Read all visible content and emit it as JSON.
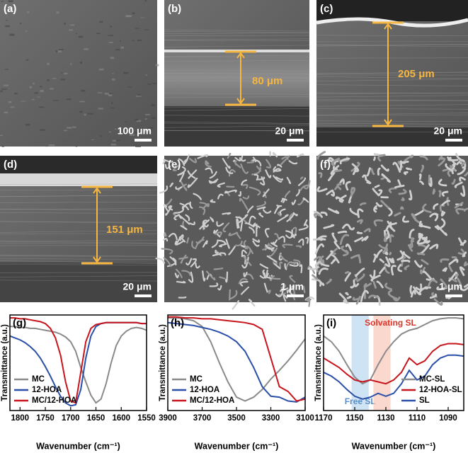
{
  "figure": {
    "images": [
      {
        "label": "(a)",
        "scale_bar": "100 μm"
      },
      {
        "label": "(b)",
        "scale_bar": "20 μm",
        "thickness": "80 μm"
      },
      {
        "label": "(c)",
        "scale_bar": "20 μm",
        "thickness": "205 μm"
      },
      {
        "label": "(d)",
        "scale_bar": "20 μm",
        "thickness": "151 μm"
      },
      {
        "label": "(e)",
        "scale_bar": "1 μm"
      },
      {
        "label": "(f)",
        "scale_bar": "1 μm"
      }
    ]
  },
  "chart_data": [
    {
      "type": "line",
      "label": "(g)",
      "xlabel": "Wavenumber (cm⁻¹)",
      "ylabel": "Transmittance (a.u.)",
      "legend": "lower left",
      "xlim": [
        1820,
        1550
      ],
      "ylim": [
        0,
        1
      ],
      "xticks": [
        1800,
        1750,
        1700,
        1650,
        1600,
        1550
      ],
      "x": [
        1820,
        1810,
        1800,
        1790,
        1780,
        1770,
        1760,
        1750,
        1740,
        1730,
        1720,
        1710,
        1700,
        1690,
        1680,
        1670,
        1660,
        1650,
        1640,
        1630,
        1620,
        1610,
        1600,
        1590,
        1580,
        1570,
        1560,
        1550
      ],
      "series": [
        {
          "name": "MC",
          "color": "#8a8a8a",
          "values": [
            0.88,
            0.88,
            0.87,
            0.87,
            0.86,
            0.86,
            0.85,
            0.84,
            0.83,
            0.82,
            0.8,
            0.77,
            0.72,
            0.62,
            0.45,
            0.3,
            0.16,
            0.08,
            0.12,
            0.28,
            0.5,
            0.68,
            0.78,
            0.83,
            0.86,
            0.87,
            0.86,
            0.84
          ]
        },
        {
          "name": "12-HOA",
          "color": "#2a4fa8",
          "values": [
            0.78,
            0.76,
            0.74,
            0.71,
            0.67,
            0.62,
            0.55,
            0.46,
            0.36,
            0.25,
            0.15,
            0.08,
            0.05,
            0.06,
            0.22,
            0.55,
            0.78,
            0.88,
            0.91,
            0.92,
            0.92,
            0.92,
            0.92,
            0.92,
            0.92,
            0.92,
            0.91,
            0.91
          ]
        },
        {
          "name": "MC/12-HOA",
          "color": "#c8141c",
          "values": [
            0.97,
            0.97,
            0.96,
            0.96,
            0.95,
            0.94,
            0.93,
            0.91,
            0.86,
            0.76,
            0.58,
            0.3,
            0.1,
            0.08,
            0.4,
            0.72,
            0.86,
            0.9,
            0.91,
            0.92,
            0.92,
            0.92,
            0.92,
            0.92,
            0.92,
            0.92,
            0.91,
            0.91
          ]
        }
      ]
    },
    {
      "type": "line",
      "label": "(h)",
      "xlabel": "Wavenumber (cm⁻¹)",
      "ylabel": "Transmittance (a.u.)",
      "legend": "lower left",
      "xlim": [
        3900,
        3100
      ],
      "ylim": [
        0,
        1
      ],
      "xticks": [
        3900,
        3700,
        3500,
        3300,
        3100
      ],
      "x": [
        3900,
        3850,
        3800,
        3750,
        3700,
        3650,
        3600,
        3550,
        3500,
        3450,
        3400,
        3350,
        3300,
        3250,
        3200,
        3150,
        3100
      ],
      "series": [
        {
          "name": "MC",
          "color": "#8a8a8a",
          "values": [
            0.97,
            0.97,
            0.96,
            0.94,
            0.88,
            0.72,
            0.5,
            0.3,
            0.14,
            0.1,
            0.14,
            0.22,
            0.33,
            0.42,
            0.52,
            0.63,
            0.75
          ]
        },
        {
          "name": "12-HOA",
          "color": "#2a4fa8",
          "values": [
            0.92,
            0.91,
            0.9,
            0.89,
            0.87,
            0.85,
            0.82,
            0.78,
            0.72,
            0.62,
            0.45,
            0.25,
            0.15,
            0.14,
            0.1,
            0.09,
            0.14
          ]
        },
        {
          "name": "MC/12-HOA",
          "color": "#c8141c",
          "values": [
            0.98,
            0.98,
            0.97,
            0.97,
            0.96,
            0.96,
            0.95,
            0.94,
            0.93,
            0.92,
            0.9,
            0.85,
            0.55,
            0.25,
            0.2,
            0.1,
            0.12
          ]
        }
      ]
    },
    {
      "type": "line",
      "label": "(i)",
      "xlabel": "Wavenumber (cm⁻¹)",
      "ylabel": "Transmittance (a.u.)",
      "legend": "lower right",
      "xlim": [
        1170,
        1080
      ],
      "ylim": [
        0,
        1
      ],
      "xticks": [
        1170,
        1150,
        1130,
        1110,
        1090
      ],
      "bands": [
        {
          "label": "Free SL",
          "range": [
            1152,
            1141
          ],
          "color": "#b9d7ee"
        },
        {
          "label": "Solvating SL",
          "range": [
            1138,
            1127
          ],
          "color": "#f9c7b9"
        }
      ],
      "x": [
        1170,
        1165,
        1160,
        1155,
        1150,
        1145,
        1140,
        1135,
        1130,
        1125,
        1120,
        1115,
        1110,
        1105,
        1100,
        1095,
        1090,
        1085,
        1080
      ],
      "series": [
        {
          "name": "MC-SL",
          "color": "#8a8a8a",
          "values": [
            0.78,
            0.72,
            0.62,
            0.48,
            0.35,
            0.28,
            0.32,
            0.48,
            0.62,
            0.72,
            0.8,
            0.84,
            0.86,
            0.9,
            0.94,
            0.96,
            0.97,
            0.97,
            0.96
          ]
        },
        {
          "name": "12-HOA-SL",
          "color": "#c8141c",
          "values": [
            0.55,
            0.5,
            0.45,
            0.38,
            0.32,
            0.3,
            0.32,
            0.3,
            0.28,
            0.32,
            0.4,
            0.55,
            0.48,
            0.52,
            0.62,
            0.68,
            0.7,
            0.7,
            0.69
          ]
        },
        {
          "name": "SL",
          "color": "#2a4fa8",
          "values": [
            0.4,
            0.36,
            0.3,
            0.22,
            0.15,
            0.12,
            0.14,
            0.18,
            0.15,
            0.18,
            0.28,
            0.42,
            0.32,
            0.36,
            0.48,
            0.55,
            0.58,
            0.58,
            0.57
          ]
        }
      ]
    }
  ]
}
